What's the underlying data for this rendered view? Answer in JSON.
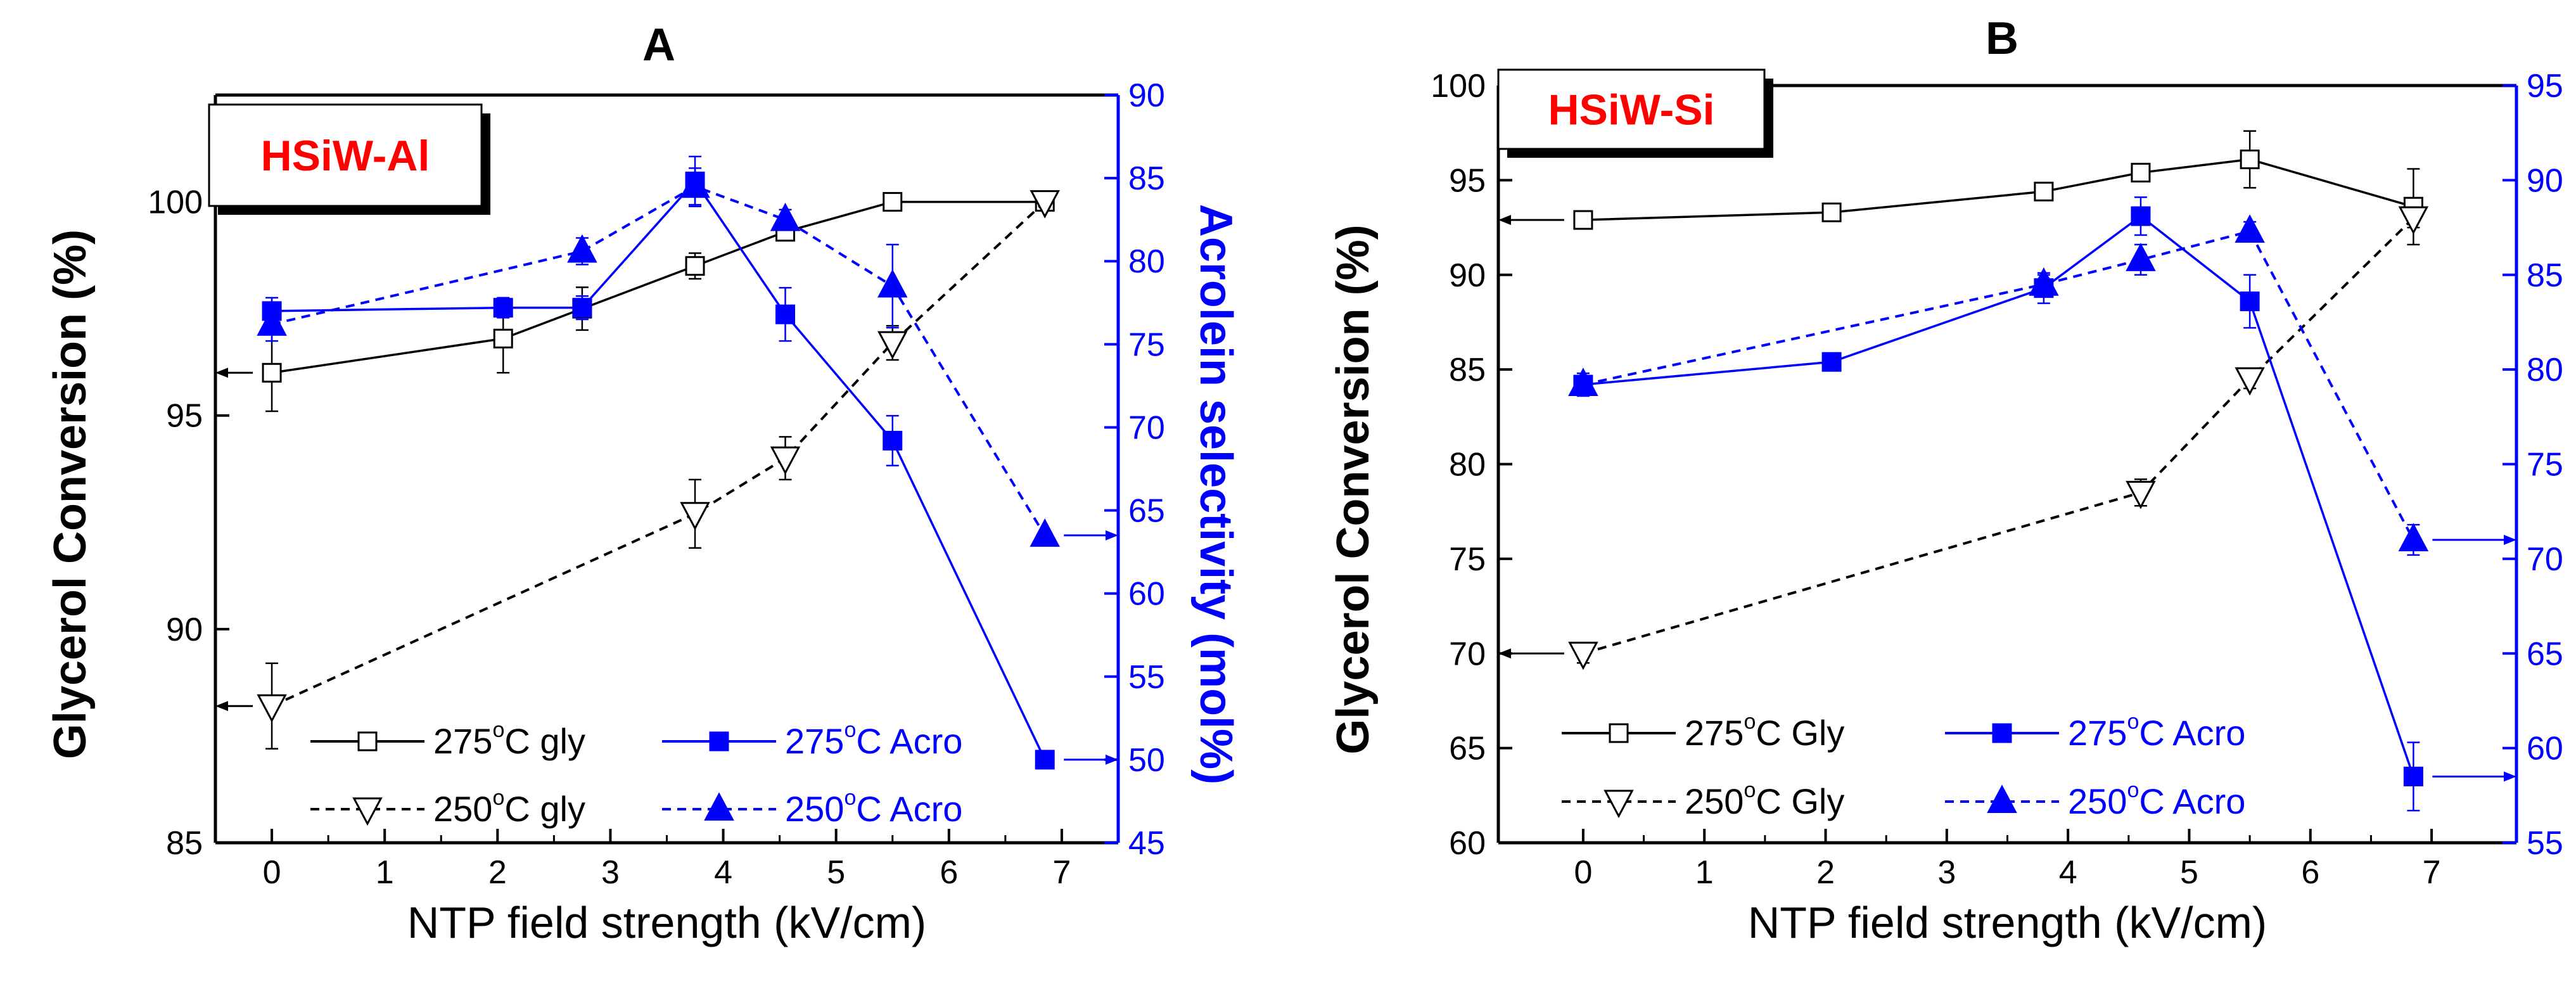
{
  "colors": {
    "black": "#000000",
    "blue": "#0000ff",
    "label_red": "#ff0000",
    "background": "#ffffff"
  },
  "chart_data": [
    {
      "panel_letter": "A",
      "type": "line",
      "badge": "HSiW-Al",
      "xlabel": "NTP field strength (kV/cm)",
      "ylabel_left": "Glycerol Conversion (%)",
      "ylabel_right": "Acrolein selectivity (mol%)",
      "xlim": [
        -0.5,
        7.5
      ],
      "ylim_left": [
        85,
        102.5
      ],
      "ylim_right": [
        45,
        90
      ],
      "x_ticks": [
        "0",
        "1",
        "2",
        "3",
        "4",
        "5",
        "6",
        "7"
      ],
      "y_ticks_left": [
        "85",
        "90",
        "95",
        "100"
      ],
      "y_ticks_right": [
        "45",
        "50",
        "55",
        "60",
        "65",
        "70",
        "75",
        "80",
        "85",
        "90"
      ],
      "series": [
        {
          "name": "275°C gly",
          "axis": "left",
          "color": "black",
          "marker": "square-open",
          "dash": "solid",
          "x": [
            0,
            2.05,
            2.75,
            3.75,
            4.55,
            5.5,
            6.85
          ],
          "y": [
            96.0,
            96.8,
            97.5,
            98.5,
            99.3,
            100.0,
            100.0
          ],
          "err": [
            0.9,
            0.8,
            0.5,
            0.3,
            0.15,
            0,
            0
          ]
        },
        {
          "name": "250°C gly",
          "axis": "left",
          "color": "black",
          "marker": "triangle-down-open",
          "dash": "dashed",
          "x": [
            0,
            3.75,
            4.55,
            5.5,
            6.85
          ],
          "y": [
            88.2,
            92.7,
            94.0,
            96.7,
            100.0
          ],
          "err": [
            1.0,
            0.8,
            0.5,
            0.4,
            0
          ]
        },
        {
          "name": "275°C Acro",
          "axis": "right",
          "color": "blue",
          "marker": "square-filled",
          "dash": "solid",
          "x": [
            0,
            2.05,
            2.75,
            3.75,
            4.55,
            5.5,
            6.85
          ],
          "y": [
            77.0,
            77.2,
            77.2,
            84.8,
            76.8,
            69.2,
            50.0
          ],
          "err": [
            0.8,
            0.6,
            0.7,
            1.5,
            1.6,
            1.5,
            0
          ]
        },
        {
          "name": "250°C Acro",
          "axis": "right",
          "color": "blue",
          "marker": "triangle-up-filled",
          "dash": "dashed",
          "x": [
            0,
            2.75,
            3.75,
            4.55,
            5.5,
            6.85
          ],
          "y": [
            76.2,
            80.6,
            84.5,
            82.5,
            78.5,
            63.5
          ],
          "err": [
            1.0,
            0.8,
            1.1,
            0.6,
            2.5,
            0
          ]
        }
      ],
      "legend": [
        {
          "label": "275",
          "suffix": "C gly",
          "series": 0
        },
        {
          "label": "275",
          "suffix": "C Acro",
          "series": 2
        },
        {
          "label": "250",
          "suffix": "C gly",
          "series": 1
        },
        {
          "label": "250",
          "suffix": "C Acro",
          "series": 3
        }
      ],
      "degree_mark": "o",
      "axis_arrows": [
        {
          "axis": "left",
          "x": 0,
          "y": 96.0
        },
        {
          "axis": "left",
          "x": 0,
          "y": 88.2
        },
        {
          "axis": "right",
          "x": 6.85,
          "y": 63.5
        },
        {
          "axis": "right",
          "x": 6.85,
          "y": 50.0
        }
      ]
    },
    {
      "panel_letter": "B",
      "type": "line",
      "badge": "HSiW-Si",
      "xlabel": "NTP field strength (kV/cm)",
      "ylabel_left": "Glycerol Conversion (%)",
      "ylabel_right": "Acrolein selectivity (mol%)",
      "xlim": [
        -0.7,
        7.7
      ],
      "ylim_left": [
        60,
        100
      ],
      "ylim_right": [
        55,
        95
      ],
      "x_ticks": [
        "0",
        "1",
        "2",
        "3",
        "4",
        "5",
        "6",
        "7"
      ],
      "y_ticks_left": [
        "60",
        "65",
        "70",
        "75",
        "80",
        "85",
        "90",
        "95",
        "100"
      ],
      "y_ticks_right": [
        "55",
        "60",
        "65",
        "70",
        "75",
        "80",
        "85",
        "90",
        "95"
      ],
      "series": [
        {
          "name": "275°C Gly",
          "axis": "left",
          "color": "black",
          "marker": "square-open",
          "dash": "solid",
          "x": [
            0,
            2.05,
            3.8,
            4.6,
            5.5,
            6.85
          ],
          "y": [
            92.9,
            93.3,
            94.4,
            95.4,
            96.1,
            93.6
          ],
          "err": [
            0.3,
            0.3,
            0.4,
            0.3,
            1.5,
            2.0
          ]
        },
        {
          "name": "250°C Gly",
          "axis": "left",
          "color": "black",
          "marker": "triangle-down-open",
          "dash": "dashed",
          "x": [
            0,
            4.6,
            5.5,
            6.85
          ],
          "y": [
            70.0,
            78.5,
            84.5,
            93.0
          ],
          "err": [
            0.5,
            0.7,
            0.5,
            0.5
          ]
        },
        {
          "name": "275°C Acro",
          "axis": "right",
          "color": "blue",
          "marker": "square-filled",
          "dash": "solid",
          "x": [
            0,
            2.05,
            3.8,
            4.6,
            5.5,
            6.85
          ],
          "y": [
            79.2,
            80.4,
            84.3,
            88.1,
            83.6,
            58.5
          ],
          "err": [
            0.4,
            0.3,
            0.8,
            1.0,
            1.4,
            1.8
          ]
        },
        {
          "name": "250°C Acro",
          "axis": "right",
          "color": "blue",
          "marker": "triangle-up-filled",
          "dash": "dashed",
          "x": [
            0,
            3.8,
            4.6,
            5.5,
            6.85
          ],
          "y": [
            79.2,
            84.5,
            85.8,
            87.3,
            71.0
          ],
          "err": [
            0.6,
            0.5,
            0.8,
            0.5,
            0.8
          ]
        }
      ],
      "legend": [
        {
          "label": "275",
          "suffix": "C Gly",
          "series": 0
        },
        {
          "label": "275",
          "suffix": "C Acro",
          "series": 2
        },
        {
          "label": "250",
          "suffix": "C Gly",
          "series": 1
        },
        {
          "label": "250",
          "suffix": "C Acro",
          "series": 3
        }
      ],
      "degree_mark": "o",
      "axis_arrows": [
        {
          "axis": "left",
          "x": 0,
          "y": 92.9
        },
        {
          "axis": "left",
          "x": 0,
          "y": 70.0
        },
        {
          "axis": "right",
          "x": 6.85,
          "y": 71.0
        },
        {
          "axis": "right",
          "x": 6.85,
          "y": 58.5
        }
      ]
    }
  ]
}
